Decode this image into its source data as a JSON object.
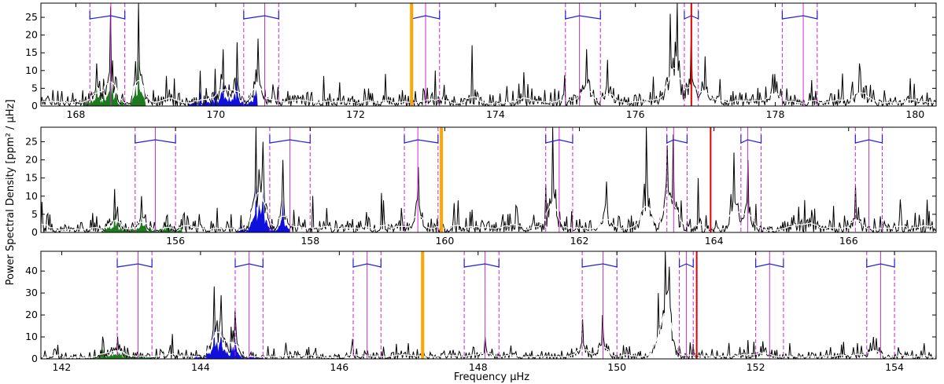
{
  "figure": {
    "ylabel": "Power Spectral Density [ppm² / μHz]",
    "xlabel": "Frequency μHz"
  },
  "chart_data": [
    {
      "type": "line",
      "xlim": [
        167.5,
        180.3
      ],
      "ylim": [
        0,
        29
      ],
      "xticks": [
        168,
        170,
        172,
        174,
        176,
        178,
        180
      ],
      "yticks": [
        0,
        5,
        10,
        15,
        20,
        25
      ],
      "orange_line": 172.8,
      "red_line": 176.8,
      "green_band": [
        168.1,
        169.0
      ],
      "blue_band": [
        169.6,
        170.6
      ],
      "mode_groups": [
        {
          "center": 168.5,
          "left": 168.2,
          "right": 168.7
        },
        {
          "center": 170.7,
          "left": 170.4,
          "right": 170.9
        },
        {
          "center": 173.0,
          "left": 172.8,
          "right": 173.2
        },
        {
          "center": 175.2,
          "left": 175.0,
          "right": 175.5
        },
        {
          "center": 176.8,
          "left": 176.7,
          "right": 176.9
        },
        {
          "center": 178.4,
          "left": 178.1,
          "right": 178.6
        }
      ],
      "peaks": [
        {
          "x": 168.5,
          "y": 28
        },
        {
          "x": 168.9,
          "y": 29
        },
        {
          "x": 168.3,
          "y": 12
        },
        {
          "x": 170.1,
          "y": 16
        },
        {
          "x": 170.3,
          "y": 18
        },
        {
          "x": 170.6,
          "y": 19
        },
        {
          "x": 175.3,
          "y": 16
        },
        {
          "x": 175.6,
          "y": 13
        },
        {
          "x": 176.5,
          "y": 26
        },
        {
          "x": 176.6,
          "y": 29
        },
        {
          "x": 176.8,
          "y": 20
        },
        {
          "x": 177.0,
          "y": 14
        },
        {
          "x": 178.0,
          "y": 9
        },
        {
          "x": 179.2,
          "y": 12
        }
      ]
    },
    {
      "type": "line",
      "xlim": [
        154.0,
        167.3
      ],
      "ylim": [
        0,
        29
      ],
      "xticks": [
        156,
        158,
        160,
        162,
        164,
        166
      ],
      "yticks": [
        0,
        5,
        10,
        15,
        20,
        25
      ],
      "orange_line": 159.95,
      "red_line": 163.95,
      "green_band": [
        154.9,
        156.1
      ],
      "blue_band": [
        156.9,
        157.7
      ],
      "mode_groups": [
        {
          "center": 155.7,
          "left": 155.4,
          "right": 156.0
        },
        {
          "center": 157.7,
          "left": 157.4,
          "right": 158.0
        },
        {
          "center": 159.6,
          "left": 159.4,
          "right": 159.9
        },
        {
          "center": 161.7,
          "left": 161.5,
          "right": 161.9
        },
        {
          "center": 163.4,
          "left": 163.3,
          "right": 163.6
        },
        {
          "center": 164.5,
          "left": 164.4,
          "right": 164.7
        },
        {
          "center": 166.3,
          "left": 166.1,
          "right": 166.5
        }
      ],
      "peaks": [
        {
          "x": 155.1,
          "y": 12
        },
        {
          "x": 155.5,
          "y": 10
        },
        {
          "x": 157.2,
          "y": 29
        },
        {
          "x": 157.3,
          "y": 25
        },
        {
          "x": 157.6,
          "y": 20
        },
        {
          "x": 159.6,
          "y": 18
        },
        {
          "x": 161.6,
          "y": 29
        },
        {
          "x": 162.4,
          "y": 14
        },
        {
          "x": 163.0,
          "y": 29
        },
        {
          "x": 163.3,
          "y": 24
        },
        {
          "x": 163.4,
          "y": 27
        },
        {
          "x": 164.3,
          "y": 22
        },
        {
          "x": 164.5,
          "y": 20
        },
        {
          "x": 166.1,
          "y": 13
        }
      ]
    },
    {
      "type": "line",
      "xlim": [
        141.7,
        154.6
      ],
      "ylim": [
        0,
        49
      ],
      "xticks": [
        142,
        144,
        146,
        148,
        150,
        152,
        154
      ],
      "yticks": [
        0,
        10,
        20,
        30,
        40
      ],
      "orange_line": 147.2,
      "red_line": 151.15,
      "green_band": [
        142.4,
        143.3
      ],
      "blue_band": [
        143.9,
        144.9
      ],
      "mode_groups": [
        {
          "center": 143.1,
          "left": 142.8,
          "right": 143.3
        },
        {
          "center": 144.7,
          "left": 144.5,
          "right": 144.9
        },
        {
          "center": 146.4,
          "left": 146.2,
          "right": 146.6
        },
        {
          "center": 148.1,
          "left": 147.8,
          "right": 148.3
        },
        {
          "center": 149.8,
          "left": 149.5,
          "right": 150.0
        },
        {
          "center": 151.0,
          "left": 150.9,
          "right": 151.1
        },
        {
          "center": 152.2,
          "left": 152.0,
          "right": 152.4
        },
        {
          "center": 153.8,
          "left": 153.6,
          "right": 154.0
        }
      ],
      "peaks": [
        {
          "x": 142.8,
          "y": 10
        },
        {
          "x": 144.2,
          "y": 33
        },
        {
          "x": 144.3,
          "y": 29
        },
        {
          "x": 144.5,
          "y": 22
        },
        {
          "x": 148.1,
          "y": 10
        },
        {
          "x": 149.5,
          "y": 18
        },
        {
          "x": 149.8,
          "y": 20
        },
        {
          "x": 150.7,
          "y": 49
        },
        {
          "x": 150.75,
          "y": 42
        },
        {
          "x": 150.6,
          "y": 30
        },
        {
          "x": 152.1,
          "y": 8
        },
        {
          "x": 153.7,
          "y": 10
        }
      ]
    }
  ]
}
